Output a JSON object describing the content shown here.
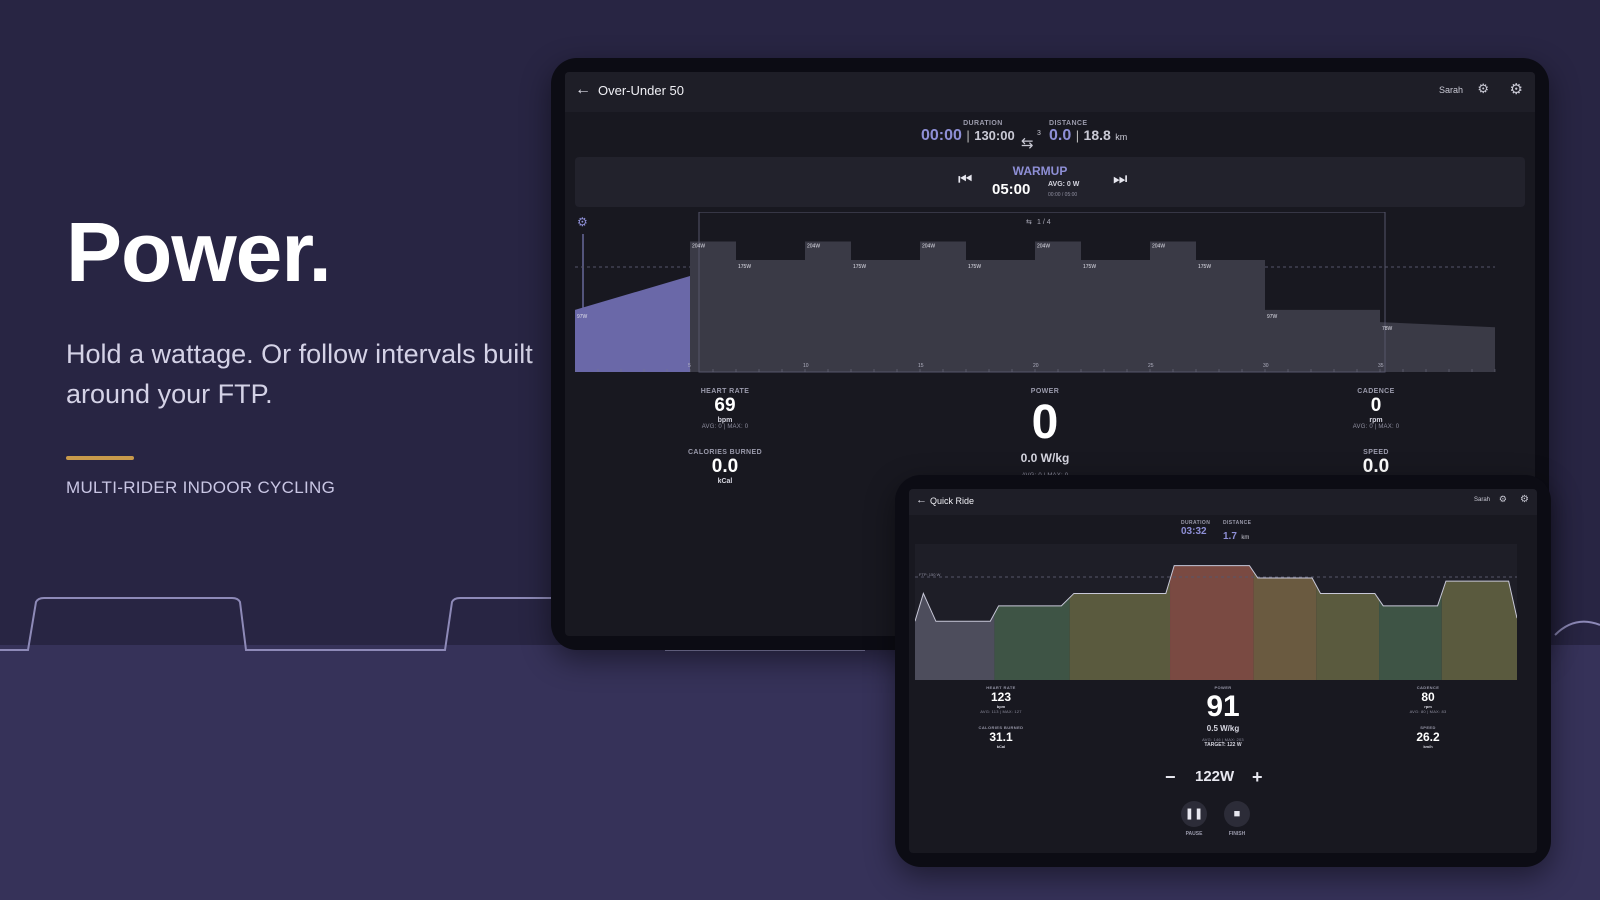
{
  "hero": {
    "title": "Power.",
    "subtitle": "Hold a wattage. Or follow intervals built around your FTP.",
    "tagline": "MULTI-RIDER INDOOR CYCLING"
  },
  "workout_screen": {
    "title": "Over-Under 50",
    "user": "Sarah",
    "duration_label": "DURATION",
    "elapsed": "00:00",
    "total": "130:00",
    "laps_badge": "3",
    "distance_label": "DISTANCE",
    "distance": "0.0",
    "distance_total": "18.8",
    "distance_unit": "km",
    "interval": {
      "name": "WARMUP",
      "remaining": "05:00",
      "avg": "AVG: 0 W",
      "progress": "00:00 / 05:00"
    },
    "repeat_label": "1 / 4",
    "chart": {
      "x_ticks": [
        "5",
        "10",
        "15",
        "20",
        "25",
        "30",
        "35"
      ],
      "segment_labels": [
        "97W",
        "204W",
        "175W",
        "204W",
        "175W",
        "204W",
        "175W",
        "204W",
        "175W",
        "204W",
        "175W",
        "97W",
        "78W"
      ],
      "segments": [
        {
          "start": 0,
          "end": 5,
          "from": 97,
          "to": 150
        },
        {
          "start": 5,
          "end": 7,
          "watts": 204
        },
        {
          "start": 7,
          "end": 10,
          "watts": 175
        },
        {
          "start": 10,
          "end": 12,
          "watts": 204
        },
        {
          "start": 12,
          "end": 15,
          "watts": 175
        },
        {
          "start": 15,
          "end": 17,
          "watts": 204
        },
        {
          "start": 17,
          "end": 20,
          "watts": 175
        },
        {
          "start": 20,
          "end": 22,
          "watts": 204
        },
        {
          "start": 22,
          "end": 25,
          "watts": 175
        },
        {
          "start": 25,
          "end": 27,
          "watts": 204
        },
        {
          "start": 27,
          "end": 30,
          "watts": 175
        },
        {
          "start": 30,
          "end": 35,
          "watts": 97
        },
        {
          "start": 35,
          "end": 40,
          "from": 78,
          "to": 70
        }
      ]
    },
    "metrics": {
      "heart_rate": {
        "label": "HEART RATE",
        "value": "69",
        "unit": "bpm",
        "sub": "AVG: 0 | MAX: 0"
      },
      "calories": {
        "label": "CALORIES BURNED",
        "value": "0.0",
        "unit": "kCal"
      },
      "power": {
        "label": "POWER",
        "value": "0",
        "wkg": "0.0 W/kg",
        "sub": "AVG: 0 | MAX: 0"
      },
      "cadence": {
        "label": "CADENCE",
        "value": "0",
        "unit": "rpm",
        "sub": "AVG: 0 | MAX: 0"
      },
      "speed": {
        "label": "SPEED",
        "value": "0.0"
      }
    }
  },
  "quick_ride": {
    "title": "Quick Ride",
    "user": "Sarah",
    "duration_label": "DURATION",
    "duration": "03:32",
    "distance_label": "DISTANCE",
    "distance": "1.7",
    "distance_unit": "km",
    "ftp_label": "FTP: 150 W",
    "power_trace": [
      {
        "t": 0,
        "w": 95
      },
      {
        "t": 2,
        "w": 140
      },
      {
        "t": 5,
        "w": 95
      },
      {
        "t": 18,
        "w": 95
      },
      {
        "t": 20,
        "w": 120
      },
      {
        "t": 35,
        "w": 120
      },
      {
        "t": 38,
        "w": 140
      },
      {
        "t": 60,
        "w": 140
      },
      {
        "t": 62,
        "w": 185
      },
      {
        "t": 80,
        "w": 185
      },
      {
        "t": 82,
        "w": 165
      },
      {
        "t": 95,
        "w": 165
      },
      {
        "t": 97,
        "w": 140
      },
      {
        "t": 110,
        "w": 140
      },
      {
        "t": 112,
        "w": 120
      },
      {
        "t": 125,
        "w": 120
      },
      {
        "t": 127,
        "w": 160
      },
      {
        "t": 142,
        "w": 160
      },
      {
        "t": 144,
        "w": 100
      }
    ],
    "zones": [
      {
        "start": 0,
        "end": 19,
        "color": "#4d4d5c"
      },
      {
        "start": 19,
        "end": 37,
        "color": "#3e5445"
      },
      {
        "start": 37,
        "end": 61,
        "color": "#5a5a3e"
      },
      {
        "start": 61,
        "end": 81,
        "color": "#7a4a42"
      },
      {
        "start": 81,
        "end": 96,
        "color": "#6a5a40"
      },
      {
        "start": 96,
        "end": 111,
        "color": "#5a5a3e"
      },
      {
        "start": 111,
        "end": 126,
        "color": "#3e5445"
      },
      {
        "start": 126,
        "end": 144,
        "color": "#5a5a3e"
      }
    ],
    "metrics": {
      "heart_rate": {
        "label": "HEART RATE",
        "value": "123",
        "unit": "bpm",
        "sub": "AVG: 113 | MAX: 127"
      },
      "calories": {
        "label": "CALORIES BURNED",
        "value": "31.1",
        "unit": "kCal"
      },
      "power": {
        "label": "POWER",
        "value": "91",
        "wkg": "0.5 W/kg",
        "sub": "AVG: 146 | MAX: 203",
        "target": "TARGET: 122 W"
      },
      "cadence": {
        "label": "CADENCE",
        "value": "80",
        "unit": "rpm",
        "sub": "AVG: 80 | MAX: 83"
      },
      "speed": {
        "label": "SPEED",
        "value": "26.2",
        "unit": "km/h"
      }
    },
    "target_watts": "122W",
    "pause_label": "PAUSE",
    "finish_label": "FINISH"
  },
  "colors": {
    "accent": "#8e8fd6",
    "gold": "#c89a4b",
    "background": "#282543"
  }
}
